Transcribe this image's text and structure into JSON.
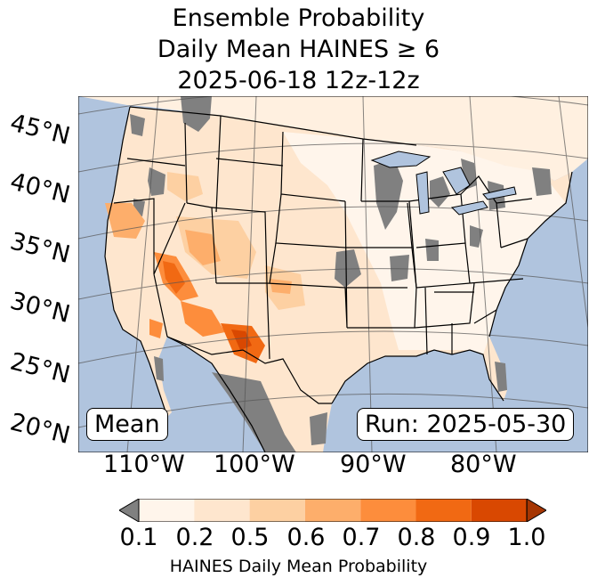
{
  "title": {
    "line1": "Ensemble Probability",
    "line2": "Daily Mean HAINES ≥ 6",
    "line3": "2025-06-18 12z-12z"
  },
  "map": {
    "lat_labels": [
      "45°N",
      "40°N",
      "35°N",
      "30°N",
      "25°N",
      "20°N"
    ],
    "lon_labels": [
      "110°W",
      "100°W",
      "90°W",
      "80°W"
    ],
    "stat_label": "Mean",
    "run_label": "Run: 2025-05-30",
    "colors": {
      "ocean": "#b0c4de",
      "missing": "#808080",
      "land_low": "#fff5eb",
      "border": "#000000",
      "graticule": "#555555"
    }
  },
  "colorbar": {
    "ticks": [
      "0.1",
      "0.2",
      "0.5",
      "0.6",
      "0.7",
      "0.8",
      "0.9",
      "1.0"
    ],
    "colors": [
      "#fff5eb",
      "#fee6ce",
      "#fdd0a2",
      "#fdae6b",
      "#fd8d3c",
      "#f16913",
      "#d94801"
    ],
    "under_color": "#808080",
    "over_color": "#a63603",
    "label": "HAINES Daily Mean Probability"
  }
}
